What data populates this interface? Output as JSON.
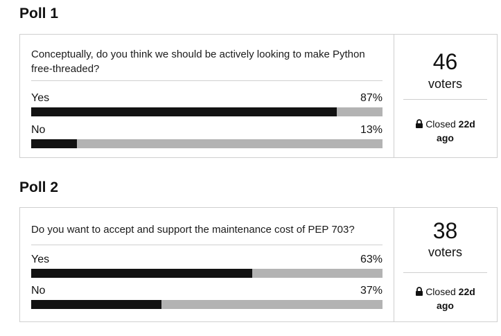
{
  "polls": [
    {
      "title": "Poll 1",
      "question": "Conceptually, do you think we should be actively looking to make Python free-threaded?",
      "options": [
        {
          "label": "Yes",
          "percent": "87%",
          "fill": 0.87
        },
        {
          "label": "No",
          "percent": "13%",
          "fill": 0.13
        }
      ],
      "voters": "46",
      "voters_label": "voters",
      "status_prefix": "Closed",
      "status_time": "22d",
      "status_suffix": "ago"
    },
    {
      "title": "Poll 2",
      "question": "Do you want to accept and support the maintenance cost of PEP 703?",
      "options": [
        {
          "label": "Yes",
          "percent": "63%",
          "fill": 0.63
        },
        {
          "label": "No",
          "percent": "37%",
          "fill": 0.37
        }
      ],
      "voters": "38",
      "voters_label": "voters",
      "status_prefix": "Closed",
      "status_time": "22d",
      "status_suffix": "ago"
    }
  ],
  "colors": {
    "bar_fill": "#121212",
    "bar_track": "#b3b3b3",
    "border": "#cfcfcf"
  },
  "icons": {
    "status": "lock-icon"
  }
}
